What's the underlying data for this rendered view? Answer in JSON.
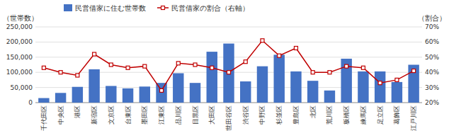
{
  "chart_data": {
    "type": "bar",
    "categories": [
      "千代田区",
      "中央区",
      "港区",
      "新宿区",
      "文京区",
      "台東区",
      "墨田区",
      "江東区",
      "品川区",
      "目黒区",
      "大田区",
      "世田谷区",
      "渋谷区",
      "中野区",
      "杉並区",
      "豊島区",
      "北区",
      "荒川区",
      "板橋区",
      "練馬区",
      "足立区",
      "葛飾区",
      "江戸川区"
    ],
    "series": [
      {
        "name": "民営借家に住む世帯数",
        "type": "bar",
        "color": "#4472C4",
        "values": [
          15000,
          32000,
          52000,
          110000,
          55000,
          47000,
          53000,
          65000,
          97000,
          65000,
          168000,
          195000,
          70000,
          120000,
          158000,
          103000,
          72000,
          40000,
          145000,
          103000,
          103000,
          68000,
          125000
        ]
      },
      {
        "name": "民営借家の割合（右軸）",
        "type": "line",
        "color": "#C00000",
        "marker": "square",
        "axis": "y2",
        "values": [
          43,
          40,
          38,
          52,
          45,
          43,
          44,
          28,
          46,
          45,
          43,
          40,
          47,
          61,
          51,
          56,
          40,
          40,
          44,
          43,
          33,
          35,
          41
        ]
      }
    ],
    "ylabel": "（世帯数）",
    "y2label": "（割合）",
    "ylim": [
      0,
      250000
    ],
    "yticks": [
      0,
      {
        "value": 50000,
        "label": "50,000"
      },
      {
        "value": 100000,
        "label": "100,000"
      },
      {
        "value": 150000,
        "label": "150,000"
      },
      {
        "value": 200000,
        "label": "200,000"
      },
      {
        "value": 250000,
        "label": "250,000"
      }
    ],
    "y2lim": [
      20,
      70
    ],
    "y2ticks": [
      {
        "value": 20,
        "label": "20%"
      },
      {
        "value": 30,
        "label": "30%"
      },
      {
        "value": 40,
        "label": "40%"
      },
      {
        "value": 50,
        "label": "50%"
      },
      {
        "value": 60,
        "label": "60%"
      },
      {
        "value": 70,
        "label": "70%"
      }
    ],
    "grid": true,
    "legend": "upper left"
  }
}
